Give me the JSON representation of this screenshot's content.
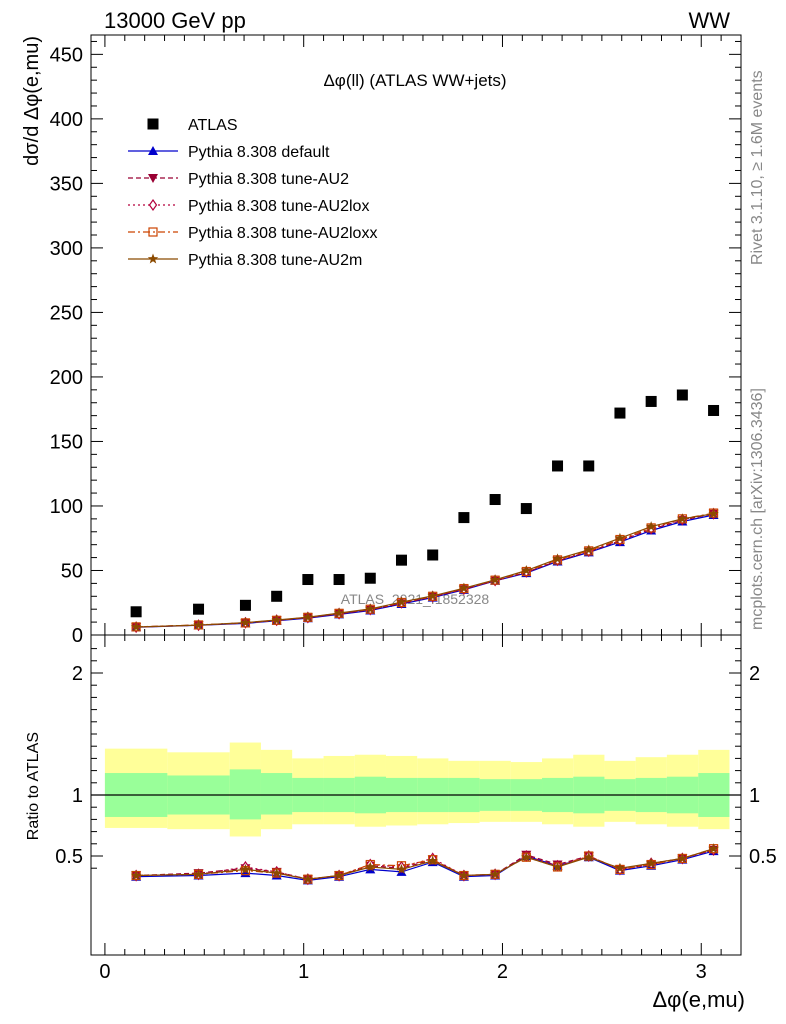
{
  "header": {
    "left": "13000 GeV pp",
    "right": "WW"
  },
  "side_text": {
    "rivet": "Rivet 3.1.10, ≥ 1.6M events",
    "mcplots": "mcplots.cern.ch [arXiv:1306.3436]"
  },
  "watermark": "ATLAS_2021_I1852328",
  "colors": {
    "atlas": "#000000",
    "default": "#0000cc",
    "au2": "#990033",
    "au2lox": "#b3003c",
    "au2loxx": "#cc4400",
    "au2m": "#8b4a00",
    "band_inner": "#99ff99",
    "band_outer": "#ffff99"
  },
  "chart_data": [
    {
      "type": "scatter",
      "title": "Δφ(ll) (ATLAS WW+jets)",
      "xlabel": "Δφ(e,mu)",
      "ylabel": "dσ/d Δφ(e,mu)",
      "xlim": [
        -0.07,
        3.2
      ],
      "ylim": [
        0,
        465
      ],
      "yticks": [
        "0",
        "50",
        "100",
        "150",
        "200",
        "250",
        "300",
        "350",
        "400",
        "450"
      ],
      "xticks": [
        "0",
        "1",
        "2",
        "3"
      ],
      "x": [
        0.157,
        0.471,
        0.707,
        0.864,
        1.021,
        1.178,
        1.335,
        1.492,
        1.649,
        1.806,
        1.963,
        2.12,
        2.277,
        2.434,
        2.591,
        2.748,
        2.905,
        3.062
      ],
      "legend_position": "top-left",
      "series": [
        {
          "name": "ATLAS",
          "style": "atlas",
          "values": [
            18,
            20,
            23,
            30,
            43,
            43,
            44,
            58,
            62,
            91,
            105,
            98,
            131,
            131,
            172,
            181,
            186,
            174
          ]
        },
        {
          "name": "Pythia 8.308 default",
          "style": "default",
          "values": [
            6,
            7.5,
            9,
            11,
            13,
            16,
            19,
            24,
            29,
            35,
            42,
            48,
            57,
            64,
            72,
            81,
            88,
            93
          ]
        },
        {
          "name": "Pythia 8.308 tune-AU2",
          "style": "au2",
          "values": [
            6.2,
            7.7,
            9.3,
            11.3,
            13.5,
            16.5,
            19.5,
            24.5,
            29.5,
            35.5,
            42,
            48.5,
            57.5,
            64.5,
            73,
            82,
            89,
            94
          ]
        },
        {
          "name": "Pythia 8.308 tune-AU2lox",
          "style": "au2lox",
          "values": [
            6.1,
            7.6,
            9.5,
            11.5,
            13.6,
            16.6,
            19.8,
            25,
            29.8,
            35.6,
            42.3,
            49,
            58,
            65,
            73.5,
            82.5,
            89.5,
            94
          ]
        },
        {
          "name": "Pythia 8.308 tune-AU2loxx",
          "style": "au2loxx",
          "values": [
            6.3,
            7.8,
            9.4,
            11.4,
            13.7,
            16.8,
            20,
            25.2,
            30,
            36,
            42.5,
            49.2,
            58.2,
            65.2,
            74,
            83,
            90,
            94.5
          ]
        },
        {
          "name": "Pythia 8.308 tune-AU2m",
          "style": "au2m",
          "values": [
            6.2,
            7.7,
            9.6,
            11.6,
            13.8,
            17,
            20.2,
            25.5,
            30.3,
            36.3,
            42.8,
            50,
            59,
            66,
            75,
            84,
            90,
            94
          ]
        }
      ]
    },
    {
      "type": "line",
      "ylabel": "Ratio to ATLAS",
      "xlabel": "Δφ(e,mu)",
      "xlim": [
        -0.07,
        3.2
      ],
      "ylim": [
        0.34,
        2.3
      ],
      "yticks": [
        "0.5",
        "1",
        "2"
      ],
      "xticks": [
        "0",
        "1",
        "2",
        "3"
      ],
      "x": [
        0.157,
        0.471,
        0.707,
        0.864,
        1.021,
        1.178,
        1.335,
        1.492,
        1.649,
        1.806,
        1.963,
        2.12,
        2.277,
        2.434,
        2.591,
        2.748,
        2.905,
        3.062
      ],
      "bins": [
        0.0,
        0.314,
        0.628,
        0.785,
        0.942,
        1.1,
        1.257,
        1.414,
        1.571,
        1.728,
        1.885,
        2.042,
        2.199,
        2.356,
        2.513,
        2.67,
        2.827,
        2.985,
        3.142
      ],
      "band_inner": [
        [
          0.82,
          1.18
        ],
        [
          0.84,
          1.16
        ],
        [
          0.8,
          1.21
        ],
        [
          0.84,
          1.18
        ],
        [
          0.86,
          1.14
        ],
        [
          0.86,
          1.14
        ],
        [
          0.85,
          1.15
        ],
        [
          0.86,
          1.14
        ],
        [
          0.86,
          1.14
        ],
        [
          0.86,
          1.14
        ],
        [
          0.87,
          1.13
        ],
        [
          0.87,
          1.13
        ],
        [
          0.86,
          1.14
        ],
        [
          0.85,
          1.15
        ],
        [
          0.87,
          1.13
        ],
        [
          0.86,
          1.14
        ],
        [
          0.85,
          1.15
        ],
        [
          0.82,
          1.18
        ]
      ],
      "band_outer": [
        [
          0.73,
          1.38
        ],
        [
          0.72,
          1.35
        ],
        [
          0.66,
          1.43
        ],
        [
          0.72,
          1.37
        ],
        [
          0.76,
          1.3
        ],
        [
          0.76,
          1.32
        ],
        [
          0.74,
          1.33
        ],
        [
          0.75,
          1.32
        ],
        [
          0.76,
          1.3
        ],
        [
          0.77,
          1.28
        ],
        [
          0.78,
          1.28
        ],
        [
          0.78,
          1.27
        ],
        [
          0.76,
          1.3
        ],
        [
          0.74,
          1.33
        ],
        [
          0.78,
          1.28
        ],
        [
          0.76,
          1.31
        ],
        [
          0.74,
          1.33
        ],
        [
          0.72,
          1.37
        ]
      ],
      "series": [
        {
          "name": "Pythia 8.308 default",
          "style": "default",
          "values": [
            0.33,
            0.34,
            0.36,
            0.34,
            0.3,
            0.33,
            0.39,
            0.37,
            0.45,
            0.33,
            0.34,
            0.5,
            0.42,
            0.49,
            0.38,
            0.42,
            0.47,
            0.54
          ]
        },
        {
          "name": "Pythia 8.308 tune-AU2",
          "style": "au2",
          "values": [
            0.34,
            0.36,
            0.4,
            0.37,
            0.31,
            0.34,
            0.42,
            0.4,
            0.47,
            0.34,
            0.35,
            0.51,
            0.43,
            0.5,
            0.39,
            0.43,
            0.48,
            0.55
          ]
        },
        {
          "name": "Pythia 8.308 tune-AU2lox",
          "style": "au2lox",
          "values": [
            0.34,
            0.35,
            0.41,
            0.37,
            0.31,
            0.34,
            0.43,
            0.41,
            0.48,
            0.34,
            0.35,
            0.5,
            0.42,
            0.5,
            0.39,
            0.44,
            0.48,
            0.55
          ]
        },
        {
          "name": "Pythia 8.308 tune-AU2loxx",
          "style": "au2loxx",
          "values": [
            0.34,
            0.35,
            0.38,
            0.36,
            0.31,
            0.34,
            0.43,
            0.42,
            0.47,
            0.34,
            0.35,
            0.49,
            0.41,
            0.5,
            0.39,
            0.43,
            0.48,
            0.56
          ]
        },
        {
          "name": "Pythia 8.308 tune-AU2m",
          "style": "au2m",
          "values": [
            0.34,
            0.35,
            0.39,
            0.36,
            0.31,
            0.34,
            0.41,
            0.39,
            0.46,
            0.34,
            0.35,
            0.49,
            0.41,
            0.49,
            0.4,
            0.44,
            0.48,
            0.56
          ]
        }
      ]
    }
  ]
}
